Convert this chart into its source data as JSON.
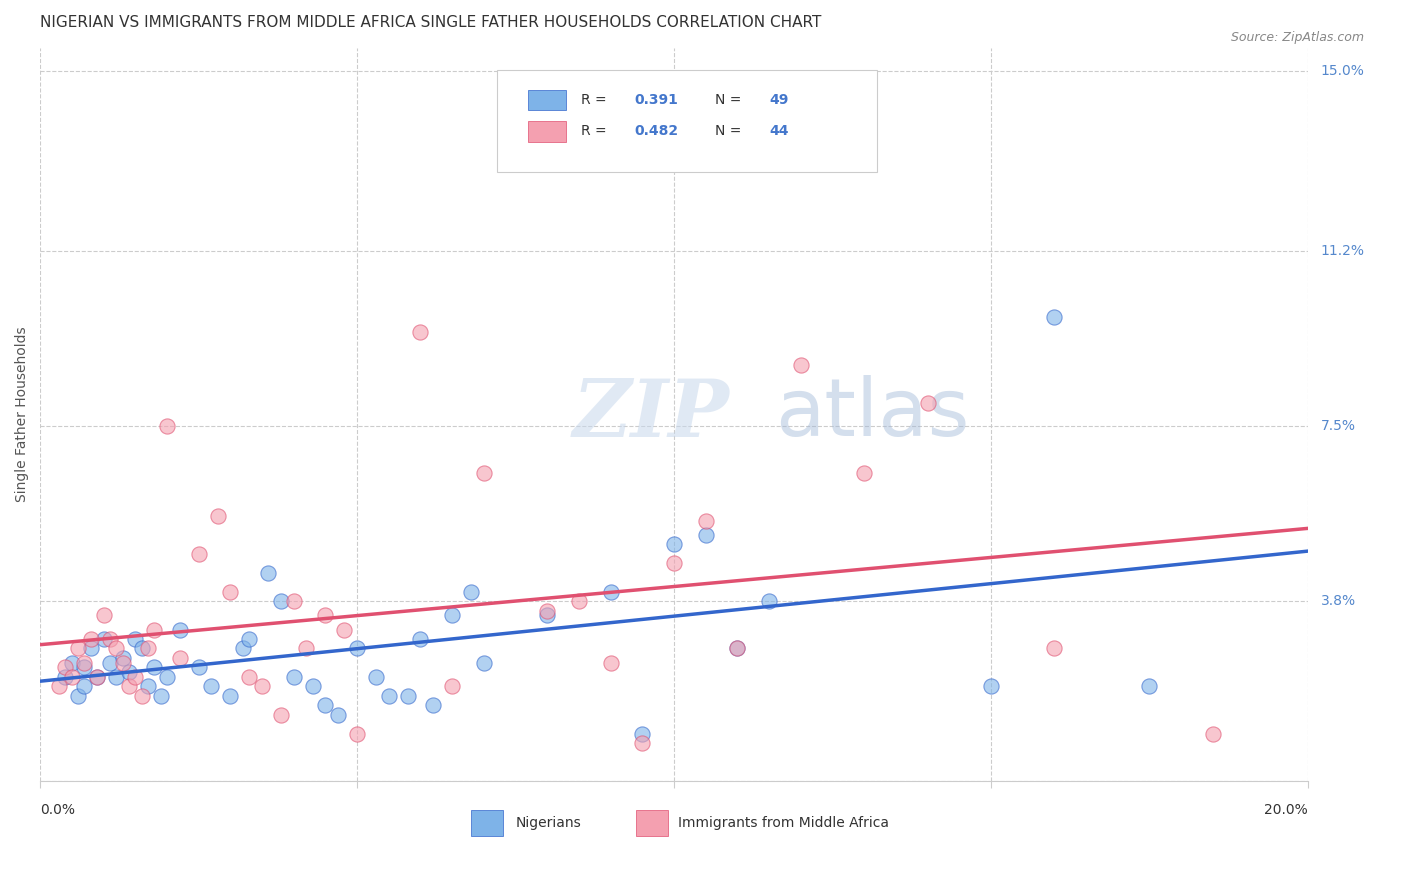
{
  "title": "NIGERIAN VS IMMIGRANTS FROM MIDDLE AFRICA SINGLE FATHER HOUSEHOLDS CORRELATION CHART",
  "source": "Source: ZipAtlas.com",
  "ylabel": "Single Father Households",
  "xlim": [
    0.0,
    0.2
  ],
  "ylim": [
    0.0,
    0.155
  ],
  "yticks": [
    0.0,
    0.038,
    0.075,
    0.112,
    0.15
  ],
  "ytick_labels": [
    "",
    "3.8%",
    "7.5%",
    "11.2%",
    "15.0%"
  ],
  "xticks": [
    0.0,
    0.05,
    0.1,
    0.15,
    0.2
  ],
  "blue_R": 0.391,
  "blue_N": 49,
  "pink_R": 0.482,
  "pink_N": 44,
  "legend_label_blue": "Nigerians",
  "legend_label_pink": "Immigrants from Middle Africa",
  "blue_color": "#7EB3E8",
  "pink_color": "#F4A0B0",
  "blue_line_color": "#3366CC",
  "pink_line_color": "#E05070",
  "watermark_zip": "ZIP",
  "watermark_atlas": "atlas",
  "blue_x": [
    0.004,
    0.005,
    0.006,
    0.007,
    0.007,
    0.008,
    0.009,
    0.01,
    0.011,
    0.012,
    0.013,
    0.014,
    0.015,
    0.016,
    0.017,
    0.018,
    0.019,
    0.02,
    0.022,
    0.025,
    0.027,
    0.03,
    0.032,
    0.033,
    0.036,
    0.038,
    0.04,
    0.043,
    0.045,
    0.047,
    0.05,
    0.053,
    0.055,
    0.058,
    0.06,
    0.062,
    0.065,
    0.068,
    0.07,
    0.08,
    0.09,
    0.095,
    0.1,
    0.105,
    0.11,
    0.115,
    0.15,
    0.16,
    0.175
  ],
  "blue_y": [
    0.022,
    0.025,
    0.018,
    0.024,
    0.02,
    0.028,
    0.022,
    0.03,
    0.025,
    0.022,
    0.026,
    0.023,
    0.03,
    0.028,
    0.02,
    0.024,
    0.018,
    0.022,
    0.032,
    0.024,
    0.02,
    0.018,
    0.028,
    0.03,
    0.044,
    0.038,
    0.022,
    0.02,
    0.016,
    0.014,
    0.028,
    0.022,
    0.018,
    0.018,
    0.03,
    0.016,
    0.035,
    0.04,
    0.025,
    0.035,
    0.04,
    0.01,
    0.05,
    0.052,
    0.028,
    0.038,
    0.02,
    0.098,
    0.02
  ],
  "pink_x": [
    0.003,
    0.004,
    0.005,
    0.006,
    0.007,
    0.008,
    0.009,
    0.01,
    0.011,
    0.012,
    0.013,
    0.014,
    0.015,
    0.016,
    0.017,
    0.018,
    0.02,
    0.022,
    0.025,
    0.028,
    0.03,
    0.033,
    0.035,
    0.038,
    0.04,
    0.042,
    0.045,
    0.048,
    0.05,
    0.06,
    0.065,
    0.07,
    0.08,
    0.085,
    0.09,
    0.095,
    0.1,
    0.105,
    0.11,
    0.12,
    0.13,
    0.14,
    0.16,
    0.185
  ],
  "pink_y": [
    0.02,
    0.024,
    0.022,
    0.028,
    0.025,
    0.03,
    0.022,
    0.035,
    0.03,
    0.028,
    0.025,
    0.02,
    0.022,
    0.018,
    0.028,
    0.032,
    0.075,
    0.026,
    0.048,
    0.056,
    0.04,
    0.022,
    0.02,
    0.014,
    0.038,
    0.028,
    0.035,
    0.032,
    0.01,
    0.095,
    0.02,
    0.065,
    0.036,
    0.038,
    0.025,
    0.008,
    0.046,
    0.055,
    0.028,
    0.088,
    0.065,
    0.08,
    0.028,
    0.01
  ]
}
